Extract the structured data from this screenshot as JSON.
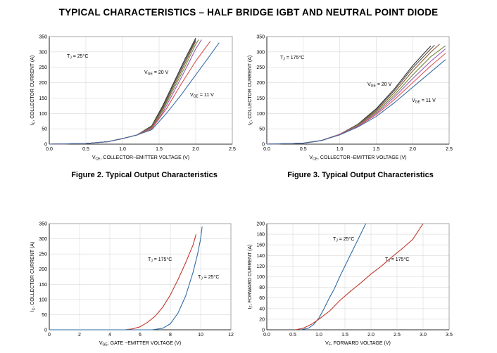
{
  "page": {
    "title": "TYPICAL CHARACTERISTICS – HALF BRIDGE IGBT AND NEUTRAL POINT DIODE"
  },
  "chart_data": [
    {
      "type": "line",
      "caption": "Figure 2. Typical Output Characteristics",
      "xlabel": "VCE, COLLECTOR−EMITTER VOLTAGE (V)",
      "ylabel": "IC, COLLECTOR CURRENT (A)",
      "xlim": [
        0,
        2.5
      ],
      "ylim": [
        0,
        350
      ],
      "xticks": [
        "0.0",
        "0.5",
        "1.0",
        "1.5",
        "2.0",
        "2.5"
      ],
      "yticks": [
        "0",
        "50",
        "100",
        "150",
        "200",
        "250",
        "300",
        "350"
      ],
      "annotations": [
        "TJ = 25°C",
        "VGE = 20 V",
        "VGE = 11 V"
      ],
      "grid": true,
      "series": [
        {
          "x": [
            0,
            0.5,
            0.8,
            1.0,
            1.2,
            1.4,
            1.55,
            1.7,
            1.85,
            2.0
          ],
          "y": [
            0,
            2,
            8,
            18,
            30,
            60,
            125,
            200,
            275,
            345
          ],
          "color": "#333333"
        },
        {
          "x": [
            0,
            0.5,
            0.8,
            1.0,
            1.2,
            1.4,
            1.55,
            1.7,
            1.85,
            2.0
          ],
          "y": [
            0,
            2,
            8,
            18,
            30,
            58,
            120,
            195,
            268,
            340
          ],
          "color": "#555555"
        },
        {
          "x": [
            0,
            0.5,
            0.8,
            1.0,
            1.2,
            1.4,
            1.55,
            1.7,
            1.85,
            2.0
          ],
          "y": [
            0,
            2,
            8,
            18,
            30,
            56,
            115,
            188,
            260,
            335
          ],
          "color": "#8b5a2b"
        },
        {
          "x": [
            0,
            0.5,
            0.8,
            1.0,
            1.2,
            1.4,
            1.55,
            1.7,
            1.85,
            2.0,
            2.04
          ],
          "y": [
            0,
            2,
            8,
            18,
            30,
            54,
            110,
            180,
            250,
            325,
            340
          ],
          "color": "#6a8a3a"
        },
        {
          "x": [
            0,
            0.5,
            0.8,
            1.0,
            1.2,
            1.4,
            1.55,
            1.7,
            1.85,
            2.0,
            2.08
          ],
          "y": [
            0,
            2,
            8,
            18,
            30,
            52,
            103,
            170,
            238,
            310,
            340
          ],
          "color": "#9b59b6"
        },
        {
          "x": [
            0,
            0.5,
            0.8,
            1.0,
            1.2,
            1.4,
            1.6,
            1.8,
            2.0,
            2.2
          ],
          "y": [
            0,
            2,
            8,
            18,
            30,
            50,
            115,
            195,
            270,
            335
          ],
          "color": "#d9534f"
        },
        {
          "x": [
            0,
            0.5,
            0.8,
            1.0,
            1.2,
            1.4,
            1.6,
            1.8,
            2.0,
            2.2,
            2.32
          ],
          "y": [
            0,
            2,
            8,
            18,
            30,
            47,
            100,
            160,
            225,
            290,
            330
          ],
          "color": "#3b6ea5"
        }
      ]
    },
    {
      "type": "line",
      "caption": "Figure 3. Typical Output Characteristics",
      "xlabel": "VCE, COLLECTOR−EMITTER VOLTAGE (V)",
      "ylabel": "IC, COLLECTOR CURRENT (A)",
      "xlim": [
        0,
        2.5
      ],
      "ylim": [
        0,
        350
      ],
      "xticks": [
        "0.0",
        "0.5",
        "1.0",
        "1.5",
        "2.0",
        "2.5"
      ],
      "yticks": [
        "0",
        "50",
        "100",
        "150",
        "200",
        "250",
        "300",
        "350"
      ],
      "annotations": [
        "TJ = 175°C",
        "VGE = 20 V",
        "VGE = 11 V"
      ],
      "grid": true,
      "series": [
        {
          "x": [
            0,
            0.5,
            0.75,
            1.0,
            1.25,
            1.5,
            1.75,
            2.0,
            2.25
          ],
          "y": [
            0,
            3,
            12,
            32,
            65,
            115,
            180,
            255,
            320
          ],
          "color": "#333333"
        },
        {
          "x": [
            0,
            0.5,
            0.75,
            1.0,
            1.25,
            1.5,
            1.75,
            2.0,
            2.25,
            2.3
          ],
          "y": [
            0,
            3,
            12,
            32,
            64,
            112,
            175,
            248,
            310,
            322
          ],
          "color": "#555555"
        },
        {
          "x": [
            0,
            0.5,
            0.75,
            1.0,
            1.25,
            1.5,
            1.75,
            2.0,
            2.25,
            2.37
          ],
          "y": [
            0,
            3,
            12,
            32,
            63,
            108,
            168,
            238,
            300,
            325
          ],
          "color": "#8b5a2b"
        },
        {
          "x": [
            0,
            0.5,
            0.75,
            1.0,
            1.25,
            1.5,
            1.75,
            2.0,
            2.25,
            2.45
          ],
          "y": [
            0,
            3,
            12,
            32,
            62,
            104,
            160,
            225,
            285,
            320
          ],
          "color": "#6a8a3a"
        },
        {
          "x": [
            0,
            0.5,
            0.75,
            1.0,
            1.25,
            1.5,
            1.75,
            2.0,
            2.25,
            2.45
          ],
          "y": [
            0,
            3,
            12,
            32,
            60,
            100,
            153,
            213,
            270,
            310
          ],
          "color": "#9b59b6"
        },
        {
          "x": [
            0,
            0.5,
            0.75,
            1.0,
            1.25,
            1.5,
            1.75,
            2.0,
            2.25,
            2.45
          ],
          "y": [
            0,
            3,
            12,
            31,
            58,
            96,
            145,
            200,
            255,
            295
          ],
          "color": "#d9534f"
        },
        {
          "x": [
            0,
            0.5,
            0.75,
            1.0,
            1.25,
            1.5,
            1.75,
            2.0,
            2.25,
            2.45
          ],
          "y": [
            0,
            3,
            12,
            30,
            56,
            90,
            135,
            185,
            235,
            275
          ],
          "color": "#3b6ea5"
        }
      ]
    },
    {
      "type": "line",
      "caption": "",
      "xlabel": "VGE, GATE −EMITTER VOLTAGE (V)",
      "ylabel": "IC, COLLECTOR CURRENT (A)",
      "xlim": [
        0,
        12
      ],
      "ylim": [
        0,
        350
      ],
      "xticks": [
        "0",
        "2",
        "4",
        "6",
        "8",
        "10",
        "12"
      ],
      "yticks": [
        "0",
        "50",
        "100",
        "150",
        "200",
        "250",
        "300",
        "350"
      ],
      "annotations": [
        "TJ = 175°C",
        "TJ = 25°C"
      ],
      "grid": true,
      "series": [
        {
          "name": "TJ = 175°C",
          "x": [
            0,
            5.0,
            5.5,
            6.0,
            6.5,
            7.0,
            7.5,
            8.0,
            8.5,
            9.0,
            9.5,
            9.7
          ],
          "y": [
            0,
            0,
            3,
            10,
            25,
            45,
            75,
            115,
            165,
            220,
            280,
            315
          ],
          "color": "#c0392b"
        },
        {
          "name": "TJ = 25°C",
          "x": [
            0,
            6.8,
            7.5,
            8.0,
            8.5,
            9.0,
            9.5,
            9.8,
            10.0,
            10.1
          ],
          "y": [
            0,
            0,
            5,
            20,
            55,
            110,
            190,
            250,
            300,
            340
          ],
          "color": "#2e6da4"
        }
      ]
    },
    {
      "type": "line",
      "caption": "",
      "xlabel": "VF, FORWARD VOLTAGE (V)",
      "ylabel": "IF, FORWARD CURRENT (A)",
      "xlim": [
        0,
        3.5
      ],
      "ylim": [
        0,
        200
      ],
      "xticks": [
        "0.0",
        "0.5",
        "1.0",
        "1.5",
        "2.0",
        "2.5",
        "3.0",
        "3.5"
      ],
      "yticks": [
        "0",
        "20",
        "40",
        "60",
        "80",
        "100",
        "120",
        "140",
        "160",
        "180",
        "200"
      ],
      "annotations": [
        "TJ = 25°C",
        "TJ = 175°C"
      ],
      "grid": true,
      "series": [
        {
          "name": "TJ = 25°C",
          "x": [
            0.65,
            0.8,
            0.9,
            1.0,
            1.1,
            1.2,
            1.3,
            1.4,
            1.5,
            1.6,
            1.7,
            1.8,
            1.9
          ],
          "y": [
            0,
            3,
            10,
            22,
            40,
            60,
            78,
            100,
            120,
            140,
            160,
            180,
            200
          ],
          "color": "#2e6da4"
        },
        {
          "name": "TJ = 175°C",
          "x": [
            0.55,
            0.7,
            0.85,
            1.0,
            1.2,
            1.4,
            1.6,
            1.8,
            2.0,
            2.2,
            2.4,
            2.6,
            2.8,
            3.0
          ],
          "y": [
            0,
            3,
            10,
            20,
            35,
            55,
            72,
            88,
            105,
            120,
            137,
            153,
            170,
            200
          ],
          "color": "#c0392b"
        }
      ]
    }
  ]
}
